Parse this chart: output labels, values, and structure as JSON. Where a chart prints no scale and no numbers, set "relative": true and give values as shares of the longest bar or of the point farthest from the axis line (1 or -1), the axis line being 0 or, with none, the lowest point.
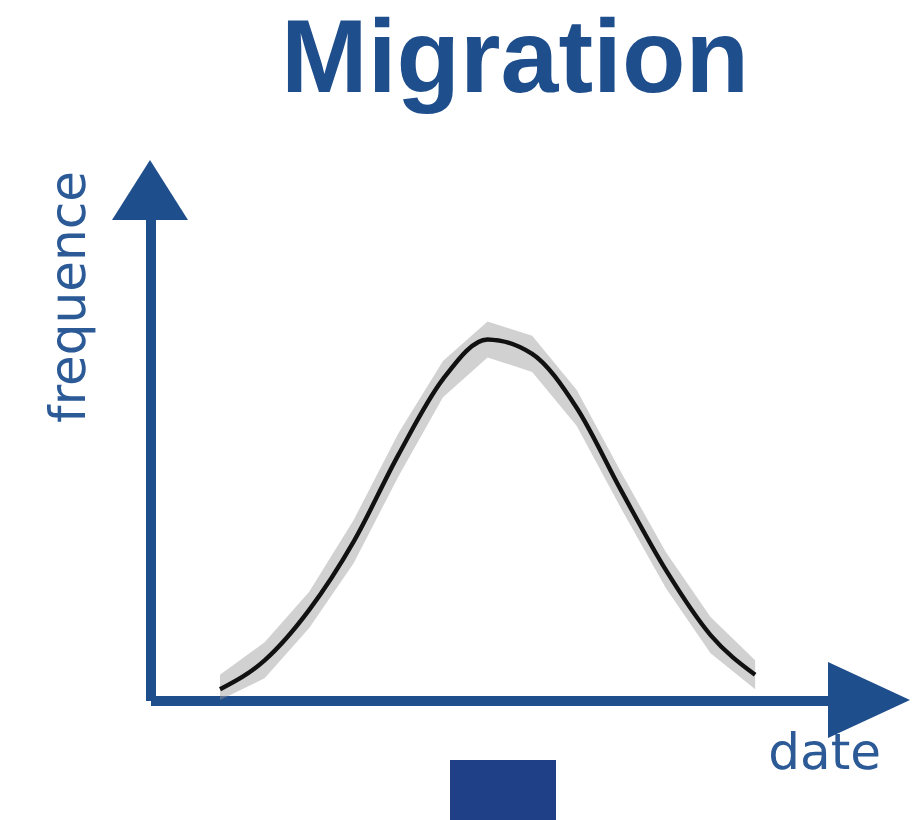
{
  "chart_data": {
    "type": "line",
    "title": "Migration",
    "xlabel": "date",
    "ylabel": "frequence",
    "relative": true,
    "marker": "none",
    "line_style": "solid",
    "categories": [
      null,
      null,
      null,
      null,
      null,
      null,
      null,
      null,
      null,
      null,
      null,
      null,
      null
    ],
    "series": [
      {
        "color": "#111111",
        "values": [
          0.03,
          0.11,
          0.25,
          0.44,
          0.68,
          0.89,
          1.0,
          0.96,
          0.81,
          0.58,
          0.36,
          0.18,
          0.07
        ],
        "lower": [
          0,
          0.06,
          0.2,
          0.38,
          0.62,
          0.84,
          0.95,
          0.91,
          0.76,
          0.53,
          0.31,
          0.13,
          0.03
        ],
        "upper": [
          0.07,
          0.16,
          0.3,
          0.5,
          0.74,
          0.94,
          1.05,
          1.01,
          0.86,
          0.63,
          0.41,
          0.23,
          0.11
        ]
      }
    ]
  }
}
